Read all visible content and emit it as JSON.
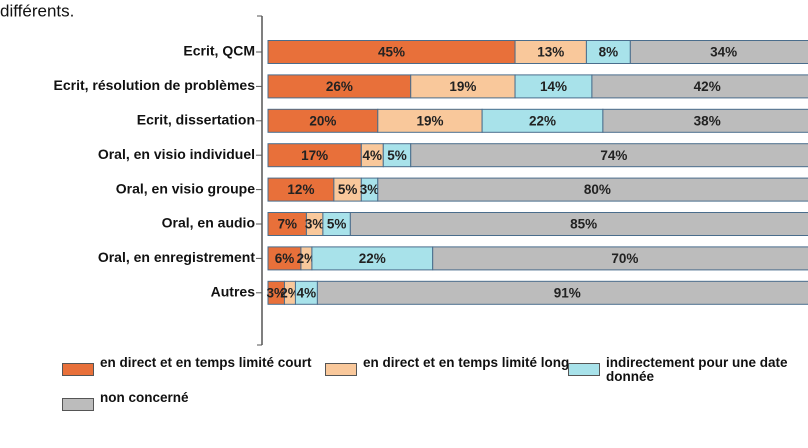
{
  "chart_data": {
    "type": "stacked-barh",
    "title": "différents.",
    "categories": [
      "Ecrit, QCM",
      "Ecrit, résolution de problèmes",
      "Ecrit, dissertation",
      "Oral, en visio individuel",
      "Oral, en visio groupe",
      "Oral, en audio",
      "Oral, en enregistrement",
      "Autres"
    ],
    "xlim": [
      0,
      100
    ],
    "series": [
      {
        "name": "en direct et en temps limité court",
        "color": "#e8703a",
        "values": [
          45,
          26,
          20,
          17,
          12,
          7,
          6,
          3
        ],
        "value_labels": [
          "45%",
          "26%",
          "20%",
          "17%",
          "12%",
          "7%",
          "6%",
          "3%"
        ]
      },
      {
        "name": "en direct et en temps limité long",
        "color": "#f9c89b",
        "values": [
          13,
          19,
          19,
          4,
          5,
          3,
          2,
          2
        ],
        "value_labels": [
          "13%",
          "19%",
          "19%",
          "4%",
          "5%",
          "3%",
          "2%",
          "2%"
        ]
      },
      {
        "name": "indirectement pour une date donnée",
        "color": "#a8e2ea",
        "values": [
          8,
          14,
          22,
          5,
          3,
          5,
          22,
          4
        ],
        "value_labels": [
          "8%",
          "14%",
          "22%",
          "5%",
          "3%",
          "5%",
          "22%",
          "4%"
        ]
      },
      {
        "name": "non concerné",
        "color": "#bcbcbc",
        "values": [
          34,
          42,
          38,
          74,
          80,
          85,
          70,
          91
        ],
        "value_labels": [
          "34%",
          "42%",
          "38%",
          "74%",
          "80%",
          "85%",
          "70%",
          "91%"
        ]
      }
    ],
    "legend": "bottom"
  }
}
